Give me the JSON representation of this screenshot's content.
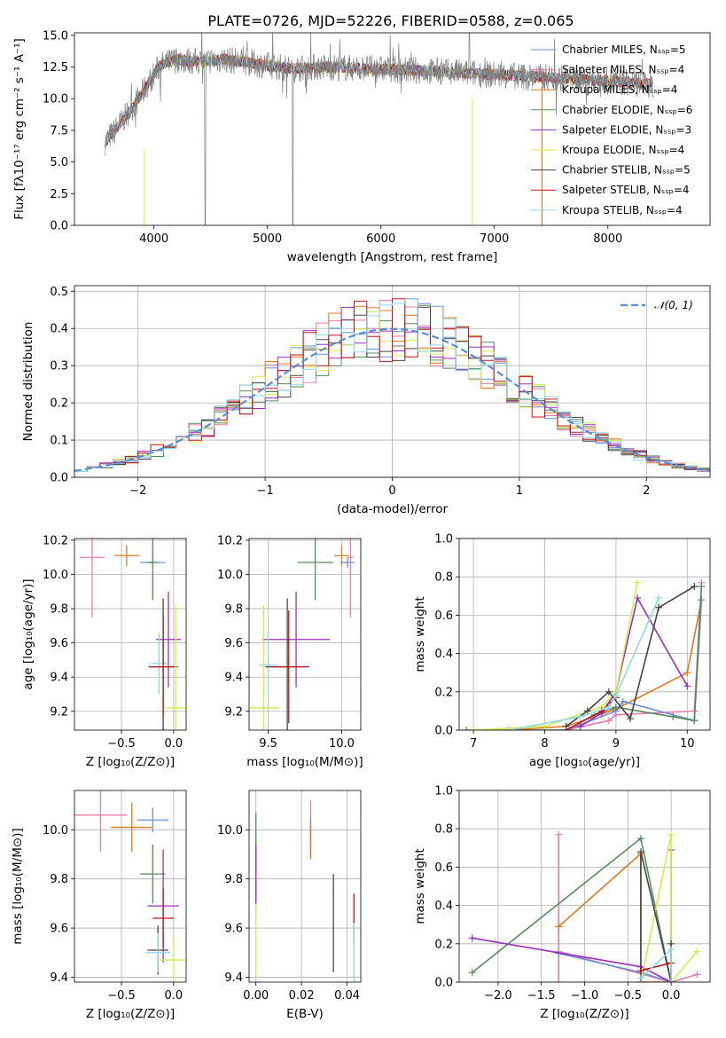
{
  "title": "PLATE=0726, MJD=52226, FIBERID=0588, z=0.065",
  "colors": {
    "Chabrier MILES": "#6d8fd6",
    "Salpeter MILES": "#e87cb2",
    "Kroupa MILES": "#e07a22",
    "Chabrier ELODIE": "#578a5c",
    "Salpeter ELODIE": "#9a2fc0",
    "Kroupa ELODIE": "#d6ea4c",
    "Chabrier STELIB": "#454545",
    "Salpeter STELIB": "#c0141e",
    "Kroupa STELIB": "#8fd8e8",
    "data": "#808080",
    "normal": "#5a8fd6"
  },
  "chart_data": [
    {
      "type": "line",
      "panel": "spectrum",
      "title": "PLATE=0726, MJD=52226, FIBERID=0588, z=0.065",
      "xlabel": "wavelength [Angstrom, rest frame]",
      "ylabel": "Flux [fλ10⁻¹⁷ erg cm⁻² s⁻¹ A⁻¹]",
      "xlim": [
        3300,
        8900
      ],
      "ylim": [
        0,
        15.2
      ],
      "xticks": [
        4000,
        5000,
        6000,
        7000,
        8000
      ],
      "yticks": [
        0.0,
        2.5,
        5.0,
        7.5,
        10.0,
        12.5,
        15.0
      ],
      "xtick_labels": [
        "4000",
        "5000",
        "6000",
        "7000",
        "8000"
      ],
      "ytick_labels": [
        "0.0",
        "2.5",
        "5.0",
        "7.5",
        "10.0",
        "12.5",
        "15.0"
      ],
      "legend_position": "top-right",
      "legend": [
        "Chabrier MILES, Nₛₛₚ=5",
        "Salpeter MILES, Nₛₛₚ=4",
        "Kroupa MILES, Nₛₛₚ=4",
        "Chabrier ELODIE, Nₛₛₚ=6",
        "Salpeter ELODIE, Nₛₛₚ=3",
        "Kroupa ELODIE, Nₛₛₚ=4",
        "Chabrier STELIB, Nₛₛₚ=5",
        "Salpeter STELIB, Nₛₛₚ=4",
        "Kroupa STELIB, Nₛₛₚ=4"
      ],
      "legend_keys": [
        "Chabrier MILES",
        "Salpeter MILES",
        "Kroupa MILES",
        "Chabrier ELODIE",
        "Salpeter ELODIE",
        "Kroupa ELODIE",
        "Chabrier STELIB",
        "Salpeter STELIB",
        "Kroupa STELIB"
      ],
      "continuum": [
        [
          3570,
          6.6
        ],
        [
          3650,
          7.4
        ],
        [
          3750,
          8.6
        ],
        [
          3850,
          9.8
        ],
        [
          3950,
          11.2
        ],
        [
          4050,
          12.6
        ],
        [
          4200,
          13.1
        ],
        [
          4400,
          12.9
        ],
        [
          4600,
          13.1
        ],
        [
          4800,
          12.9
        ],
        [
          5000,
          12.6
        ],
        [
          5200,
          12.4
        ],
        [
          5500,
          12.5
        ],
        [
          5800,
          12.4
        ],
        [
          6100,
          12.3
        ],
        [
          6400,
          12.2
        ],
        [
          6800,
          12.0
        ],
        [
          7200,
          11.8
        ],
        [
          7600,
          11.6
        ],
        [
          8000,
          11.4
        ],
        [
          8300,
          11.2
        ],
        [
          8400,
          11.1
        ]
      ]
    },
    {
      "type": "histogram",
      "panel": "residuals",
      "xlabel": "(data-model)/error",
      "ylabel": "Normed distribution",
      "xlim": [
        -2.5,
        2.5
      ],
      "ylim": [
        0,
        0.515
      ],
      "xticks": [
        -2,
        -1,
        0,
        1,
        2
      ],
      "yticks": [
        0.0,
        0.1,
        0.2,
        0.3,
        0.4,
        0.5
      ],
      "xtick_labels": [
        "−2",
        "−1",
        "0",
        "1",
        "2"
      ],
      "ytick_labels": [
        "0.0",
        "0.1",
        "0.2",
        "0.3",
        "0.4",
        "0.5"
      ],
      "legend": [
        "𝒩(0, 1)"
      ],
      "legend_position": "top-right",
      "bin_width": 0.1
    },
    {
      "type": "scatter",
      "panel": "age-vs-Z",
      "xlabel": "Z [log₁₀(Z/Z⊙)]",
      "ylabel": "age  [log₁₀(age/yr)]",
      "xlim": [
        -0.95,
        0.12
      ],
      "ylim": [
        9.09,
        10.21
      ],
      "xticks": [
        -0.5,
        0.0
      ],
      "yticks": [
        9.2,
        9.4,
        9.6,
        9.8,
        10.0,
        10.2
      ],
      "xtick_labels": [
        "−0.5",
        "0.0"
      ],
      "ytick_labels": [
        "9.2",
        "9.4",
        "9.6",
        "9.8",
        "10.0",
        "10.2"
      ],
      "points": [
        {
          "model": "Salpeter MILES",
          "x": -0.78,
          "xerr": 0.12,
          "y": 10.1,
          "yerr": 0.35
        },
        {
          "model": "Kroupa MILES",
          "x": -0.45,
          "xerr": 0.12,
          "y": 10.11,
          "yerr": 0.06
        },
        {
          "model": "Chabrier MILES",
          "x": -0.2,
          "xerr": 0.12,
          "y": 10.07,
          "yerr": 0.03
        },
        {
          "model": "Chabrier ELODIE",
          "x": -0.2,
          "xerr": 0.05,
          "y": 10.07,
          "yerr": 0.22
        },
        {
          "model": "Salpeter ELODIE",
          "x": -0.05,
          "xerr": 0.12,
          "y": 9.62,
          "yerr": 0.28
        },
        {
          "model": "Kroupa STELIB",
          "x": -0.14,
          "xerr": 0.08,
          "y": 9.48,
          "yerr": 0.18
        },
        {
          "model": "Chabrier STELIB",
          "x": -0.1,
          "xerr": 0.14,
          "y": 9.46,
          "yerr": 0.4
        },
        {
          "model": "Salpeter STELIB",
          "x": -0.1,
          "xerr": 0.12,
          "y": 9.46,
          "yerr": 0.3
        },
        {
          "model": "Kroupa ELODIE",
          "x": 0.02,
          "xerr": 0.1,
          "y": 9.22,
          "yerr": 0.6
        }
      ]
    },
    {
      "type": "scatter",
      "panel": "age-vs-mass",
      "xlabel": "mass [log₁₀(M/M⊙)]",
      "ylabel": "",
      "xlim": [
        9.37,
        10.13
      ],
      "ylim": [
        9.09,
        10.21
      ],
      "xticks": [
        9.5,
        10.0
      ],
      "yticks": [
        9.2,
        9.4,
        9.6,
        9.8,
        10.0,
        10.2
      ],
      "xtick_labels": [
        "9.5",
        "10.0"
      ],
      "ytick_labels": [
        "9.2",
        "9.4",
        "9.6",
        "9.8",
        "10.0",
        "10.2"
      ],
      "points": [
        {
          "model": "Salpeter MILES",
          "x": 10.06,
          "xerr": 0.02,
          "y": 10.1,
          "yerr": 0.35
        },
        {
          "model": "Kroupa MILES",
          "x": 10.0,
          "xerr": 0.05,
          "y": 10.11,
          "yerr": 0.06
        },
        {
          "model": "Chabrier MILES",
          "x": 10.04,
          "xerr": 0.05,
          "y": 10.07,
          "yerr": 0.03
        },
        {
          "model": "Chabrier ELODIE",
          "x": 9.82,
          "xerr": 0.12,
          "y": 10.07,
          "yerr": 0.22
        },
        {
          "model": "Salpeter ELODIE",
          "x": 9.69,
          "xerr": 0.23,
          "y": 9.62,
          "yerr": 0.28
        },
        {
          "model": "Kroupa STELIB",
          "x": 9.5,
          "xerr": 0.06,
          "y": 9.47,
          "yerr": 0.18
        },
        {
          "model": "Chabrier STELIB",
          "x": 9.63,
          "xerr": 0.15,
          "y": 9.46,
          "yerr": 0.4
        },
        {
          "model": "Salpeter STELIB",
          "x": 9.64,
          "xerr": 0.12,
          "y": 9.46,
          "yerr": 0.33
        },
        {
          "model": "Kroupa ELODIE",
          "x": 9.47,
          "xerr": 0.1,
          "y": 9.22,
          "yerr": 0.6
        }
      ]
    },
    {
      "type": "line",
      "panel": "mass-weight-vs-age",
      "xlabel": "age  [log₁₀(age/yr)]",
      "ylabel": "mass weight",
      "xlim": [
        6.8,
        10.32
      ],
      "ylim": [
        0,
        1.0
      ],
      "xticks": [
        7,
        8,
        9,
        10
      ],
      "yticks": [
        0.0,
        0.2,
        0.4,
        0.6,
        0.8,
        1.0
      ],
      "xtick_labels": [
        "7",
        "8",
        "9",
        "10"
      ],
      "ytick_labels": [
        "0.0",
        "0.2",
        "0.4",
        "0.6",
        "0.8",
        "1.0"
      ],
      "series": [
        {
          "model": "Salpeter MILES",
          "x": [
            8.3,
            8.9,
            9.0,
            10.1,
            10.2
          ],
          "y": [
            0.0,
            0.05,
            0.08,
            0.1,
            0.77
          ]
        },
        {
          "model": "Kroupa MILES",
          "x": [
            7.5,
            8.3,
            9.0,
            10.0,
            10.2
          ],
          "y": [
            0.0,
            0.02,
            0.11,
            0.3,
            0.68
          ]
        },
        {
          "model": "Chabrier MILES",
          "x": [
            8.3,
            9.0,
            9.1,
            10.1,
            10.2
          ],
          "y": [
            0.0,
            0.1,
            0.15,
            0.05,
            0.68
          ]
        },
        {
          "model": "Chabrier ELODIE",
          "x": [
            6.9,
            8.3,
            8.7,
            9.0,
            9.8,
            10.1,
            10.2
          ],
          "y": [
            0.0,
            0.0,
            0.08,
            0.12,
            0.07,
            0.05,
            0.75
          ]
        },
        {
          "model": "Salpeter ELODIE",
          "x": [
            8.5,
            8.8,
            9.0,
            9.3,
            10.0
          ],
          "y": [
            0.02,
            0.09,
            0.2,
            0.69,
            0.23
          ]
        },
        {
          "model": "Kroupa ELODIE",
          "x": [
            7.0,
            8.0,
            8.8,
            9.0,
            9.3
          ],
          "y": [
            0.0,
            0.02,
            0.12,
            0.2,
            0.77
          ]
        },
        {
          "model": "Chabrier STELIB",
          "x": [
            8.3,
            8.6,
            8.9,
            9.2,
            9.6,
            10.1
          ],
          "y": [
            0.02,
            0.1,
            0.2,
            0.06,
            0.64,
            0.75
          ]
        },
        {
          "model": "Salpeter STELIB",
          "x": [
            8.3,
            8.8,
            9.0
          ],
          "y": [
            0.0,
            0.1,
            0.17
          ]
        },
        {
          "model": "Kroupa STELIB",
          "x": [
            7.5,
            8.5,
            8.9,
            9.0,
            9.6
          ],
          "y": [
            0.0,
            0.07,
            0.12,
            0.18,
            0.69
          ]
        }
      ]
    },
    {
      "type": "scatter",
      "panel": "mass-vs-Z",
      "xlabel": "Z [log₁₀(Z/Z⊙)]",
      "ylabel": "mass [log₁₀(M/M⊙)]",
      "xlim": [
        -0.95,
        0.12
      ],
      "ylim": [
        9.38,
        10.16
      ],
      "xticks": [
        -0.5,
        0.0
      ],
      "yticks": [
        9.4,
        9.6,
        9.8,
        10.0
      ],
      "xtick_labels": [
        "−0.5",
        "0.0"
      ],
      "ytick_labels": [
        "9.4",
        "9.6",
        "9.8",
        "10.0"
      ],
      "points": [
        {
          "model": "Salpeter MILES",
          "x": -0.7,
          "xerr": 0.25,
          "y": 10.06,
          "yerr": 0.15
        },
        {
          "model": "Chabrier MILES",
          "x": -0.2,
          "xerr": 0.15,
          "y": 10.04,
          "yerr": 0.05
        },
        {
          "model": "Kroupa MILES",
          "x": -0.4,
          "xerr": 0.2,
          "y": 10.01,
          "yerr": 0.1
        },
        {
          "model": "Chabrier ELODIE",
          "x": -0.2,
          "xerr": 0.12,
          "y": 9.82,
          "yerr": 0.12
        },
        {
          "model": "Salpeter ELODIE",
          "x": -0.1,
          "xerr": 0.15,
          "y": 9.69,
          "yerr": 0.23
        },
        {
          "model": "Salpeter STELIB",
          "x": -0.1,
          "xerr": 0.1,
          "y": 9.64,
          "yerr": 0.12
        },
        {
          "model": "Chabrier STELIB",
          "x": -0.15,
          "xerr": 0.1,
          "y": 9.51,
          "yerr": 0.1
        },
        {
          "model": "Kroupa STELIB",
          "x": -0.15,
          "xerr": 0.12,
          "y": 9.5,
          "yerr": 0.08
        },
        {
          "model": "Kroupa ELODIE",
          "x": 0.0,
          "xerr": 0.15,
          "y": 9.47,
          "yerr": 0.1
        }
      ]
    },
    {
      "type": "scatter",
      "panel": "mass-vs-EBV",
      "xlabel": "E(B-V)",
      "ylabel": "",
      "xlim": [
        -0.003,
        0.046
      ],
      "ylim": [
        9.38,
        10.16
      ],
      "xticks": [
        0.0,
        0.02,
        0.04
      ],
      "yticks": [
        9.4,
        9.6,
        9.8,
        10.0
      ],
      "xtick_labels": [
        "0.00",
        "0.02",
        "0.04"
      ],
      "ytick_labels": [
        "9.4",
        "9.6",
        "9.8",
        "10.0"
      ],
      "points": [
        {
          "model": "Salpeter MILES",
          "x": 0.024,
          "y": 10.02,
          "yerr": 0.1
        },
        {
          "model": "Chabrier MILES",
          "x": 0.024,
          "y": 9.97,
          "yerr": 0.08
        },
        {
          "model": "Kroupa MILES",
          "x": 0.024,
          "y": 9.95,
          "yerr": 0.07
        },
        {
          "model": "Chabrier ELODIE",
          "x": 0.0,
          "y": 9.87,
          "yerr": 0.2
        },
        {
          "model": "Salpeter ELODIE",
          "x": 0.0,
          "y": 9.82,
          "yerr": 0.12
        },
        {
          "model": "Kroupa ELODIE",
          "x": 0.0,
          "y": 9.55,
          "yerr": 0.15
        },
        {
          "model": "Chabrier STELIB",
          "x": 0.034,
          "y": 9.62,
          "yerr": 0.2
        },
        {
          "model": "Salpeter STELIB",
          "x": 0.043,
          "y": 9.64,
          "yerr": 0.1
        },
        {
          "model": "Kroupa STELIB",
          "x": 0.043,
          "y": 9.5,
          "yerr": 0.12
        }
      ]
    },
    {
      "type": "line",
      "panel": "mass-weight-vs-Z",
      "xlabel": "Z [log₁₀(Z/Z⊙)]",
      "ylabel": "mass weight",
      "xlim": [
        -2.45,
        0.45
      ],
      "ylim": [
        0,
        1.0
      ],
      "xticks": [
        -2.0,
        -1.5,
        -1.0,
        -0.5,
        0.0
      ],
      "yticks": [
        0.0,
        0.2,
        0.4,
        0.6,
        0.8,
        1.0
      ],
      "xtick_labels": [
        "−2.0",
        "−1.5",
        "−1.0",
        "−0.5",
        "0.0"
      ],
      "ytick_labels": [
        "0.0",
        "0.2",
        "0.4",
        "0.6",
        "0.8",
        "1.0"
      ],
      "series": [
        {
          "model": "Salpeter MILES",
          "x": [
            -1.3,
            -1.3,
            -1.3,
            0.0,
            0.3
          ],
          "y": [
            0.77,
            0.0,
            0.16,
            0.0,
            0.04
          ]
        },
        {
          "model": "Kroupa MILES",
          "x": [
            -1.3,
            -0.35,
            -0.35,
            0.0
          ],
          "y": [
            0.29,
            0.67,
            0.0,
            0.0
          ]
        },
        {
          "model": "Chabrier MILES",
          "x": [
            -1.3,
            -0.35,
            0.0
          ],
          "y": [
            0.15,
            0.05,
            0.0
          ]
        },
        {
          "model": "Chabrier ELODIE",
          "x": [
            -2.3,
            -0.35,
            0.0
          ],
          "y": [
            0.05,
            0.75,
            0.0
          ]
        },
        {
          "model": "Salpeter ELODIE",
          "x": [
            -2.3,
            -0.35,
            0.0,
            0.0
          ],
          "y": [
            0.23,
            0.08,
            0.0,
            0.69
          ]
        },
        {
          "model": "Kroupa ELODIE",
          "x": [
            -0.35,
            0.0,
            0.0,
            0.3
          ],
          "y": [
            0.0,
            0.77,
            0.0,
            0.16
          ]
        },
        {
          "model": "Chabrier STELIB",
          "x": [
            -0.35,
            -0.35,
            0.0,
            0.0
          ],
          "y": [
            0.0,
            0.68,
            0.0,
            0.2
          ]
        },
        {
          "model": "Salpeter STELIB",
          "x": [
            -0.35,
            0.0
          ],
          "y": [
            0.06,
            0.1
          ]
        },
        {
          "model": "Kroupa STELIB",
          "x": [
            -0.35,
            0.0,
            0.0
          ],
          "y": [
            0.02,
            0.17,
            0.0
          ]
        }
      ]
    }
  ]
}
